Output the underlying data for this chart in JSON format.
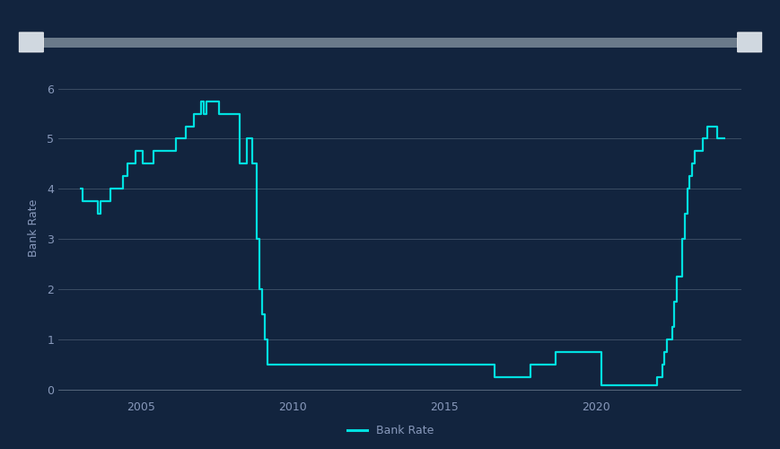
{
  "background_color": "#12243e",
  "plot_bg_color": "#12243e",
  "line_color": "#00e0e0",
  "line_width": 1.6,
  "grid_color": "#8899aa",
  "grid_alpha": 0.35,
  "tick_color": "#8899bb",
  "ylabel": "Bank Rate",
  "ylabel_color": "#8899bb",
  "ylabel_fontsize": 9,
  "tick_fontsize": 9,
  "legend_label": "Bank Rate",
  "legend_color": "#8899bb",
  "legend_fontsize": 9,
  "ylim": [
    -0.15,
    6.6
  ],
  "yticks": [
    0,
    1,
    2,
    3,
    4,
    5,
    6
  ],
  "xticks": [
    2005,
    2010,
    2015,
    2020
  ],
  "slider_bar_color": "#6a7a8a",
  "slider_handle_color": "#d0d8e0",
  "dates": [
    2003.0,
    2003.08,
    2003.58,
    2003.67,
    2003.83,
    2004.0,
    2004.42,
    2004.58,
    2004.83,
    2005.0,
    2005.08,
    2005.42,
    2006.17,
    2006.5,
    2006.75,
    2007.0,
    2007.08,
    2007.17,
    2007.25,
    2007.42,
    2007.5,
    2007.58,
    2007.75,
    2007.83,
    2008.0,
    2008.25,
    2008.5,
    2008.67,
    2008.83,
    2008.92,
    2009.0,
    2009.08,
    2009.17,
    2009.25,
    2009.33,
    2012.0,
    2016.5,
    2016.67,
    2017.83,
    2018.67,
    2019.67,
    2020.17,
    2020.25,
    2021.92,
    2022.0,
    2022.17,
    2022.25,
    2022.33,
    2022.5,
    2022.58,
    2022.67,
    2022.75,
    2022.83,
    2022.92,
    2023.0,
    2023.08,
    2023.17,
    2023.25,
    2023.5,
    2023.67,
    2023.83,
    2024.0,
    2024.25
  ],
  "rates": [
    4.0,
    3.75,
    3.5,
    3.75,
    3.75,
    4.0,
    4.25,
    4.5,
    4.75,
    4.75,
    4.5,
    4.75,
    5.0,
    5.25,
    5.5,
    5.75,
    5.5,
    5.75,
    5.75,
    5.75,
    5.75,
    5.5,
    5.5,
    5.5,
    5.5,
    4.5,
    5.0,
    4.5,
    3.0,
    2.0,
    1.5,
    1.0,
    0.5,
    0.5,
    0.5,
    0.5,
    0.5,
    0.25,
    0.5,
    0.75,
    0.75,
    0.1,
    0.1,
    0.1,
    0.25,
    0.5,
    0.75,
    1.0,
    1.25,
    1.75,
    2.25,
    2.25,
    3.0,
    3.5,
    4.0,
    4.25,
    4.5,
    4.75,
    5.0,
    5.25,
    5.25,
    5.0,
    5.0
  ],
  "xlim": [
    2002.3,
    2024.8
  ]
}
